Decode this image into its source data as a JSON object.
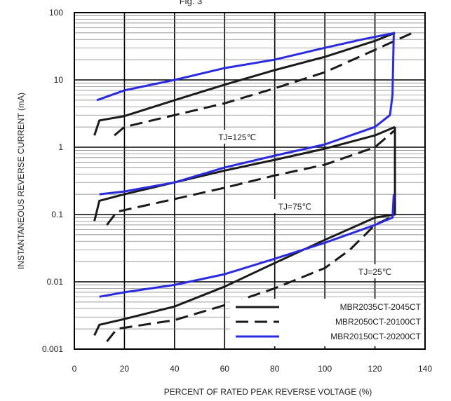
{
  "chart_data": {
    "type": "line",
    "title_fragment": "Fig. 3",
    "xlabel": "PERCENT OF RATED PEAK REVERSE VOLTAGE (%)",
    "ylabel": "INSTANTANEOUS REVERSE CURRENT (mA)",
    "x_ticks": [
      0,
      20,
      40,
      60,
      80,
      100,
      120,
      140
    ],
    "x_tick_labels": [
      "0",
      "20",
      "40",
      "60",
      "80",
      "100",
      "120",
      "140"
    ],
    "y_scale": "log",
    "y_ticks": [
      0.001,
      0.01,
      0.1,
      1,
      10,
      100
    ],
    "y_tick_labels": [
      "0.001",
      "0.01",
      "0.1",
      "1",
      "10",
      "100"
    ],
    "xlim": [
      0,
      140
    ],
    "ylim": [
      0.001,
      100
    ],
    "grid": true,
    "legend": {
      "position": "bottom-right",
      "entries": [
        {
          "label": "MBR2035CT-2045CT",
          "style": "solid",
          "color": "#1a1a1a"
        },
        {
          "label": "MBR2050CT-20100CT",
          "style": "dashed",
          "color": "#1a1a1a"
        },
        {
          "label": "MBR20150CT-20200CT",
          "style": "solid",
          "color": "#2a2ae0"
        }
      ]
    },
    "annotations": [
      {
        "text": "TJ=125℃",
        "x": 65,
        "y": 1.4
      },
      {
        "text": "TJ=75℃",
        "x": 88,
        "y": 0.13
      },
      {
        "text": "TJ=25℃",
        "x": 120,
        "y": 0.014
      }
    ],
    "series": [
      {
        "legend_index": 0,
        "temperature": "TJ=125℃",
        "color": "#1a1a1a",
        "dash": "solid",
        "points": [
          [
            8,
            1.5
          ],
          [
            10,
            2.5
          ],
          [
            20,
            2.9
          ],
          [
            40,
            5
          ],
          [
            60,
            8.5
          ],
          [
            80,
            14
          ],
          [
            100,
            22
          ],
          [
            120,
            38
          ],
          [
            128,
            50
          ]
        ]
      },
      {
        "legend_index": 1,
        "temperature": "TJ=125℃",
        "color": "#1a1a1a",
        "dash": "dashed",
        "points": [
          [
            16,
            1.5
          ],
          [
            20,
            2
          ],
          [
            40,
            3
          ],
          [
            60,
            4.5
          ],
          [
            80,
            7.5
          ],
          [
            100,
            13
          ],
          [
            120,
            28
          ],
          [
            135,
            50
          ]
        ]
      },
      {
        "legend_index": 2,
        "temperature": "TJ=125℃",
        "color": "#2a2ae0",
        "dash": "solid",
        "points": [
          [
            9,
            5
          ],
          [
            20,
            7
          ],
          [
            40,
            10
          ],
          [
            60,
            15
          ],
          [
            80,
            20
          ],
          [
            100,
            30
          ],
          [
            115,
            40
          ],
          [
            128,
            50
          ]
        ]
      },
      {
        "legend_index": 0,
        "temperature": "TJ=75℃",
        "color": "#1a1a1a",
        "dash": "solid",
        "points": [
          [
            8,
            0.08
          ],
          [
            10,
            0.16
          ],
          [
            20,
            0.2
          ],
          [
            40,
            0.3
          ],
          [
            60,
            0.45
          ],
          [
            80,
            0.65
          ],
          [
            100,
            0.95
          ],
          [
            120,
            1.5
          ],
          [
            128,
            2
          ]
        ]
      },
      {
        "legend_index": 1,
        "temperature": "TJ=75℃",
        "color": "#1a1a1a",
        "dash": "dashed",
        "points": [
          [
            13,
            0.07
          ],
          [
            17,
            0.11
          ],
          [
            40,
            0.17
          ],
          [
            60,
            0.25
          ],
          [
            80,
            0.38
          ],
          [
            100,
            0.55
          ],
          [
            120,
            1
          ],
          [
            128,
            1.8
          ]
        ]
      },
      {
        "legend_index": 2,
        "temperature": "TJ=75℃",
        "color": "#2a2ae0",
        "dash": "solid",
        "points": [
          [
            10,
            0.2
          ],
          [
            20,
            0.22
          ],
          [
            40,
            0.3
          ],
          [
            60,
            0.5
          ],
          [
            80,
            0.75
          ],
          [
            100,
            1.1
          ],
          [
            120,
            2
          ],
          [
            126,
            3
          ],
          [
            127,
            6
          ],
          [
            127.5,
            50
          ]
        ]
      },
      {
        "legend_index": 0,
        "temperature": "TJ=25℃",
        "color": "#1a1a1a",
        "dash": "solid",
        "points": [
          [
            8,
            0.0016
          ],
          [
            10,
            0.0023
          ],
          [
            20,
            0.0028
          ],
          [
            40,
            0.0043
          ],
          [
            60,
            0.0085
          ],
          [
            80,
            0.019
          ],
          [
            100,
            0.042
          ],
          [
            120,
            0.09
          ],
          [
            128,
            0.1
          ],
          [
            128,
            2
          ]
        ]
      },
      {
        "legend_index": 1,
        "temperature": "TJ=25℃",
        "color": "#1a1a1a",
        "dash": "dashed",
        "points": [
          [
            13,
            0.0013
          ],
          [
            17,
            0.002
          ],
          [
            40,
            0.0027
          ],
          [
            60,
            0.0045
          ],
          [
            80,
            0.008
          ],
          [
            100,
            0.016
          ],
          [
            110,
            0.03
          ],
          [
            120,
            0.07
          ],
          [
            126,
            0.09
          ]
        ]
      },
      {
        "legend_index": 2,
        "temperature": "TJ=25℃",
        "color": "#2a2ae0",
        "dash": "solid",
        "points": [
          [
            10,
            0.006
          ],
          [
            20,
            0.007
          ],
          [
            40,
            0.009
          ],
          [
            60,
            0.013
          ],
          [
            80,
            0.022
          ],
          [
            100,
            0.038
          ],
          [
            120,
            0.07
          ],
          [
            127,
            0.09
          ],
          [
            127.5,
            0.2
          ]
        ]
      }
    ]
  }
}
